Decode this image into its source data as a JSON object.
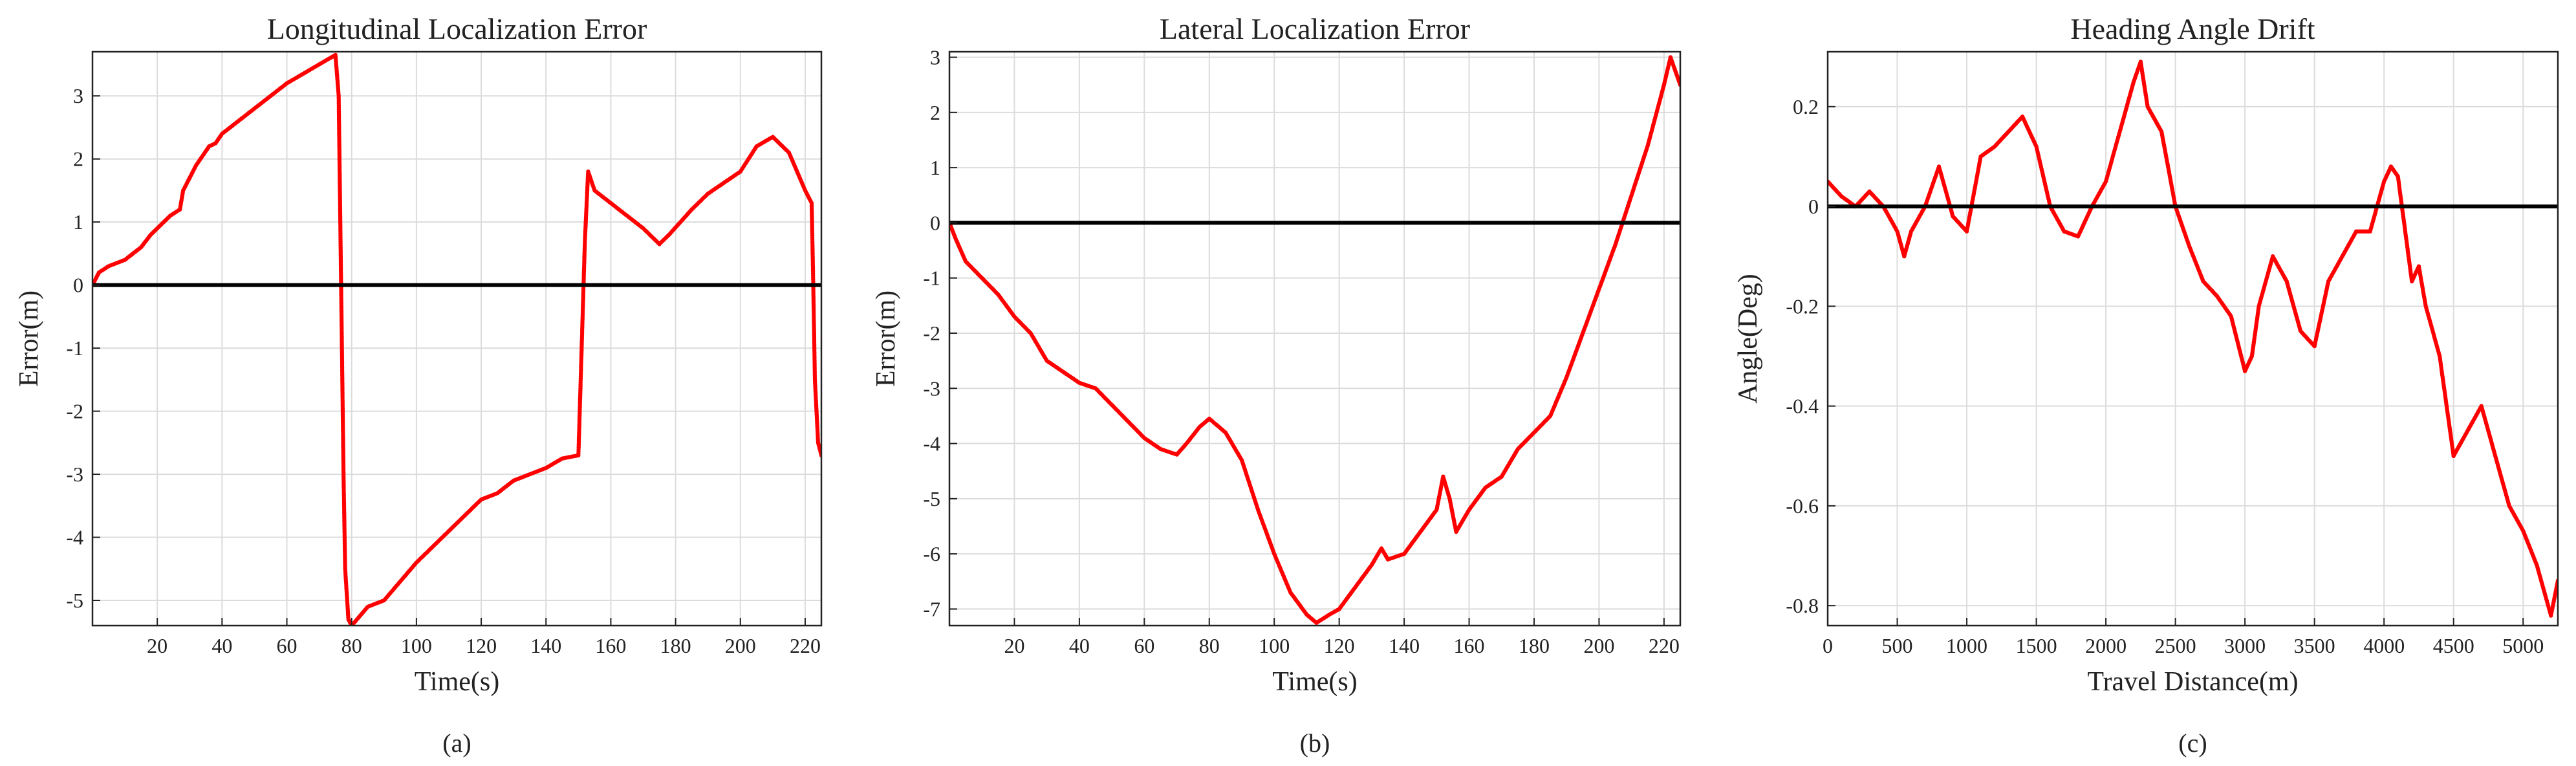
{
  "figure": {
    "style": {
      "background": "#ffffff",
      "series_color": "#ff0000",
      "zero_line_color": "#000000",
      "grid_color": "#dcdcdc",
      "frame_color": "#222222"
    }
  },
  "chart_data": [
    {
      "type": "scatter",
      "panel_label": "(a)",
      "title": "Longitudinal Localization Error",
      "xlabel": "Time(s)",
      "ylabel": "Error(m)",
      "xlim": [
        0,
        225
      ],
      "ylim": [
        -5.4,
        3.7
      ],
      "xticks": [
        20,
        40,
        60,
        80,
        100,
        120,
        140,
        160,
        180,
        200,
        220
      ],
      "yticks": [
        -5,
        -4,
        -3,
        -2,
        -1,
        0,
        1,
        2,
        3
      ],
      "grid": true,
      "reference_line": 0,
      "series": [
        {
          "x": [
            0,
            2,
            5,
            10,
            15,
            18,
            20,
            24,
            27,
            28,
            32,
            36,
            38,
            40,
            50,
            60,
            70,
            75,
            76,
            76.5,
            77,
            77.5,
            78,
            79,
            80,
            85,
            90,
            100,
            110,
            120,
            125,
            130,
            140,
            145,
            150,
            151,
            152,
            153,
            155,
            160,
            165,
            170,
            175,
            178,
            185,
            190,
            200,
            205,
            210,
            215,
            220,
            222,
            222.5,
            223,
            224,
            225
          ],
          "y": [
            0,
            0.2,
            0.3,
            0.4,
            0.6,
            0.8,
            0.9,
            1.1,
            1.2,
            1.5,
            1.9,
            2.2,
            2.25,
            2.4,
            2.8,
            3.2,
            3.5,
            3.65,
            3.0,
            1.0,
            -1.0,
            -3.0,
            -4.5,
            -5.3,
            -5.4,
            -5.1,
            -5.0,
            -4.4,
            -3.9,
            -3.4,
            -3.3,
            -3.1,
            -2.9,
            -2.75,
            -2.7,
            -1.0,
            0.7,
            1.8,
            1.5,
            1.3,
            1.1,
            0.9,
            0.65,
            0.8,
            1.2,
            1.45,
            1.8,
            2.2,
            2.35,
            2.1,
            1.5,
            1.3,
            0.0,
            -1.5,
            -2.5,
            -2.7
          ]
        }
      ]
    },
    {
      "type": "scatter",
      "panel_label": "(b)",
      "title": "Lateral Localization Error",
      "xlabel": "Time(s)",
      "ylabel": "Error(m)",
      "xlim": [
        0,
        225
      ],
      "ylim": [
        -7.3,
        3.1
      ],
      "xticks": [
        20,
        40,
        60,
        80,
        100,
        120,
        140,
        160,
        180,
        200,
        220
      ],
      "yticks": [
        -7,
        -6,
        -5,
        -4,
        -3,
        -2,
        -1,
        0,
        1,
        2,
        3
      ],
      "grid": true,
      "reference_line": 0,
      "series": [
        {
          "x": [
            0,
            2,
            5,
            10,
            15,
            20,
            25,
            30,
            35,
            40,
            45,
            50,
            55,
            60,
            65,
            70,
            73,
            77,
            80,
            85,
            90,
            95,
            100,
            105,
            110,
            113,
            117,
            120,
            125,
            130,
            133,
            135,
            140,
            145,
            150,
            152,
            154,
            156,
            160,
            165,
            170,
            175,
            180,
            185,
            190,
            195,
            200,
            205,
            210,
            215,
            220,
            222,
            225
          ],
          "y": [
            0,
            -0.3,
            -0.7,
            -1.0,
            -1.3,
            -1.7,
            -2.0,
            -2.5,
            -2.7,
            -2.9,
            -3.0,
            -3.3,
            -3.6,
            -3.9,
            -4.1,
            -4.2,
            -4.0,
            -3.7,
            -3.55,
            -3.8,
            -4.3,
            -5.2,
            -6.0,
            -6.7,
            -7.1,
            -7.25,
            -7.1,
            -7.0,
            -6.6,
            -6.2,
            -5.9,
            -6.1,
            -6.0,
            -5.6,
            -5.2,
            -4.6,
            -5.0,
            -5.6,
            -5.2,
            -4.8,
            -4.6,
            -4.1,
            -3.8,
            -3.5,
            -2.8,
            -2.0,
            -1.2,
            -0.4,
            0.5,
            1.4,
            2.5,
            3.0,
            2.5
          ]
        }
      ]
    },
    {
      "type": "scatter",
      "panel_label": "(c)",
      "title": "Heading Angle Drift",
      "xlabel": "Travel Distance(m)",
      "ylabel": "Angle(Deg)",
      "xlim": [
        0,
        5250
      ],
      "ylim": [
        -0.84,
        0.31
      ],
      "xticks": [
        0,
        500,
        1000,
        1500,
        2000,
        2500,
        3000,
        3500,
        4000,
        4500,
        5000
      ],
      "yticks": [
        -0.8,
        -0.6,
        -0.4,
        -0.2,
        0,
        0.2
      ],
      "grid": true,
      "reference_line": 0,
      "series": [
        {
          "x": [
            0,
            100,
            200,
            300,
            400,
            500,
            550,
            600,
            700,
            800,
            900,
            1000,
            1100,
            1200,
            1300,
            1400,
            1500,
            1600,
            1700,
            1800,
            1900,
            2000,
            2100,
            2200,
            2250,
            2300,
            2400,
            2500,
            2600,
            2700,
            2800,
            2900,
            3000,
            3050,
            3100,
            3200,
            3300,
            3400,
            3500,
            3600,
            3700,
            3800,
            3900,
            4000,
            4050,
            4100,
            4200,
            4250,
            4300,
            4400,
            4500,
            4600,
            4700,
            4800,
            4850,
            4900,
            5000,
            5100,
            5200,
            5250
          ],
          "y": [
            0.05,
            0.02,
            0.0,
            0.03,
            0.0,
            -0.05,
            -0.1,
            -0.05,
            0.0,
            0.08,
            -0.02,
            -0.05,
            0.1,
            0.12,
            0.15,
            0.18,
            0.12,
            0.0,
            -0.05,
            -0.06,
            0.0,
            0.05,
            0.15,
            0.25,
            0.29,
            0.2,
            0.15,
            0.0,
            -0.08,
            -0.15,
            -0.18,
            -0.22,
            -0.33,
            -0.3,
            -0.2,
            -0.1,
            -0.15,
            -0.25,
            -0.28,
            -0.15,
            -0.1,
            -0.05,
            -0.05,
            0.05,
            0.08,
            0.06,
            -0.15,
            -0.12,
            -0.2,
            -0.3,
            -0.5,
            -0.45,
            -0.4,
            -0.5,
            -0.55,
            -0.6,
            -0.65,
            -0.72,
            -0.82,
            -0.75
          ]
        }
      ]
    }
  ]
}
